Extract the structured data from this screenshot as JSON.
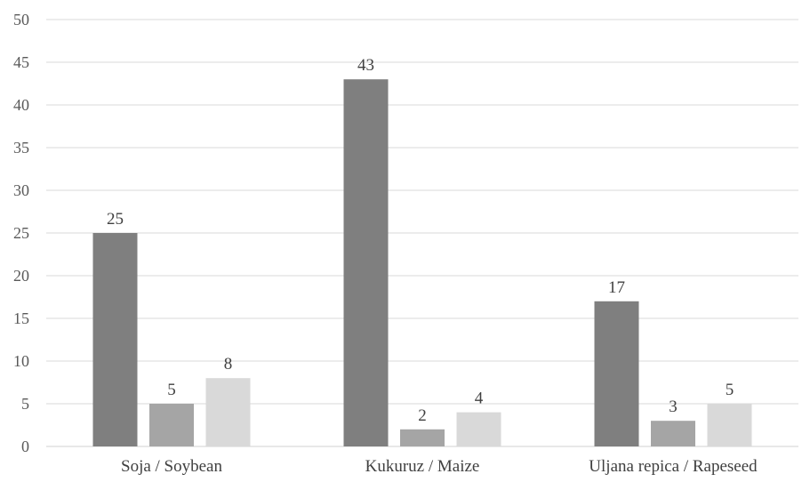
{
  "chart_data": {
    "type": "bar",
    "title": "",
    "xlabel": "",
    "ylabel": "",
    "categories": [
      "Soja / Soybean",
      "Kukuruz / Maize",
      "Uljana repica / Rapeseed"
    ],
    "series": [
      {
        "values": [
          25,
          43,
          17
        ],
        "color": "#7f7f7f"
      },
      {
        "values": [
          5,
          2,
          3
        ],
        "color": "#a5a5a5"
      },
      {
        "values": [
          8,
          4,
          5
        ],
        "color": "#d9d9d9"
      }
    ],
    "ylim": [
      0,
      50
    ],
    "yticks": [
      0,
      5,
      10,
      15,
      20,
      25,
      30,
      35,
      40,
      45,
      50
    ],
    "grid": true,
    "legend": "none",
    "data_labels": true
  }
}
